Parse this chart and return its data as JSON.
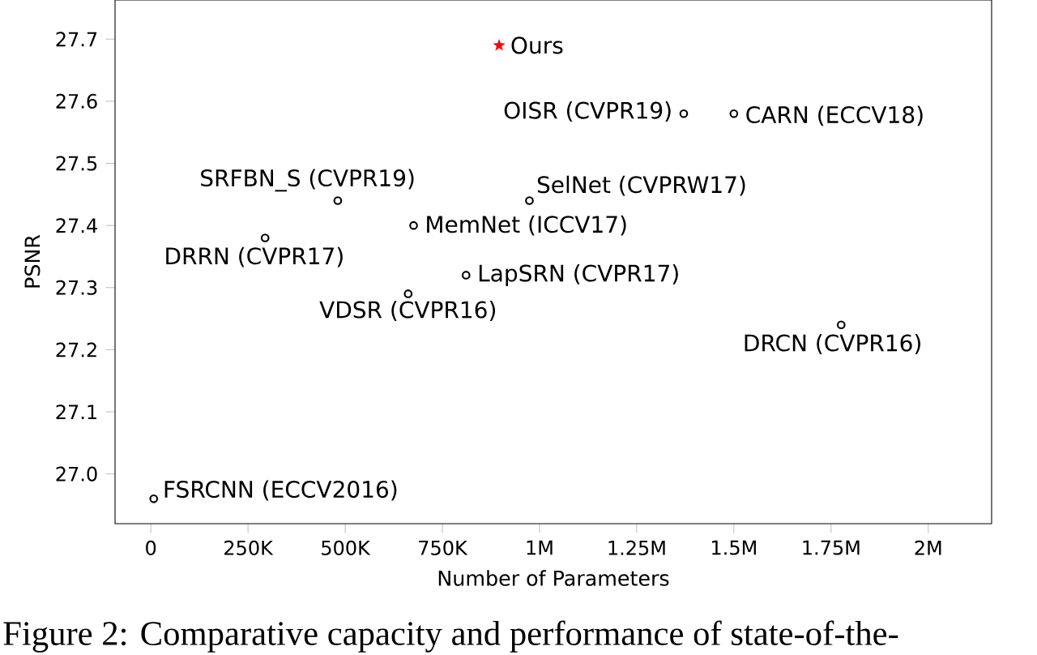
{
  "chart_data": {
    "type": "scatter",
    "xlabel": "Number of Parameters",
    "ylabel": "PSNR",
    "xlim": [
      -92000,
      2163000
    ],
    "ylim": [
      26.92,
      27.763
    ],
    "xticks": [
      0,
      {
        "value": 250000,
        "label": "250K"
      },
      {
        "value": 500000,
        "label": "500K"
      },
      {
        "value": 750000,
        "label": "750K"
      },
      {
        "value": 1000000,
        "label": "1M"
      },
      {
        "value": 1250000,
        "label": "1.25M"
      },
      {
        "value": 1500000,
        "label": "1.5M"
      },
      {
        "value": 1750000,
        "label": "1.75M"
      },
      {
        "value": 2000000,
        "label": "2M"
      }
    ],
    "yticks": [
      {
        "value": 27.0,
        "label": "27.0"
      },
      {
        "value": 27.1,
        "label": "27.1"
      },
      {
        "value": 27.2,
        "label": "27.2"
      },
      {
        "value": 27.3,
        "label": "27.3"
      },
      {
        "value": 27.4,
        "label": "27.4"
      },
      {
        "value": 27.5,
        "label": "27.5"
      },
      {
        "value": 27.6,
        "label": "27.6"
      },
      {
        "value": 27.7,
        "label": "27.7"
      }
    ],
    "grid": false,
    "legend": false,
    "series": [
      {
        "color": "#000000",
        "marker": "circle",
        "x": [
          1371000,
          1500000,
          481000,
          974000,
          676000,
          294000,
          811000,
          662000,
          1776000,
          7500
        ],
        "values": [
          27.58,
          27.58,
          27.44,
          27.44,
          27.4,
          27.38,
          27.32,
          27.29,
          27.24,
          26.96
        ]
      },
      {
        "name": "Ours",
        "color": "#ff0000",
        "marker": "star",
        "x": [
          896000
        ],
        "values": [
          27.69
        ]
      }
    ],
    "annotations": [
      {
        "text": "OISR (CVPR19)",
        "x": 1371000,
        "y": 27.58
      },
      {
        "text": "CARN (ECCV18)",
        "x": 1500000,
        "y": 27.58
      },
      {
        "text": "SRFBN_S (CVPR19)",
        "x": 481000,
        "y": 27.44
      },
      {
        "text": "SelNet (CVPRW17)",
        "x": 974000,
        "y": 27.44
      },
      {
        "text": "MemNet (ICCV17)",
        "x": 676000,
        "y": 27.4
      },
      {
        "text": "DRRN (CVPR17)",
        "x": 294000,
        "y": 27.38
      },
      {
        "text": "LapSRN (CVPR17)",
        "x": 811000,
        "y": 27.32
      },
      {
        "text": "VDSR (CVPR16)",
        "x": 662000,
        "y": 27.29
      },
      {
        "text": "DRCN (CVPR16)",
        "x": 1776000,
        "y": 27.24
      },
      {
        "text": "FSRCNN (ECCV2016)",
        "x": 7500,
        "y": 26.96
      },
      "Figure 2: Comparative capacity and performance of state-of-the-"
    ]
  }
}
